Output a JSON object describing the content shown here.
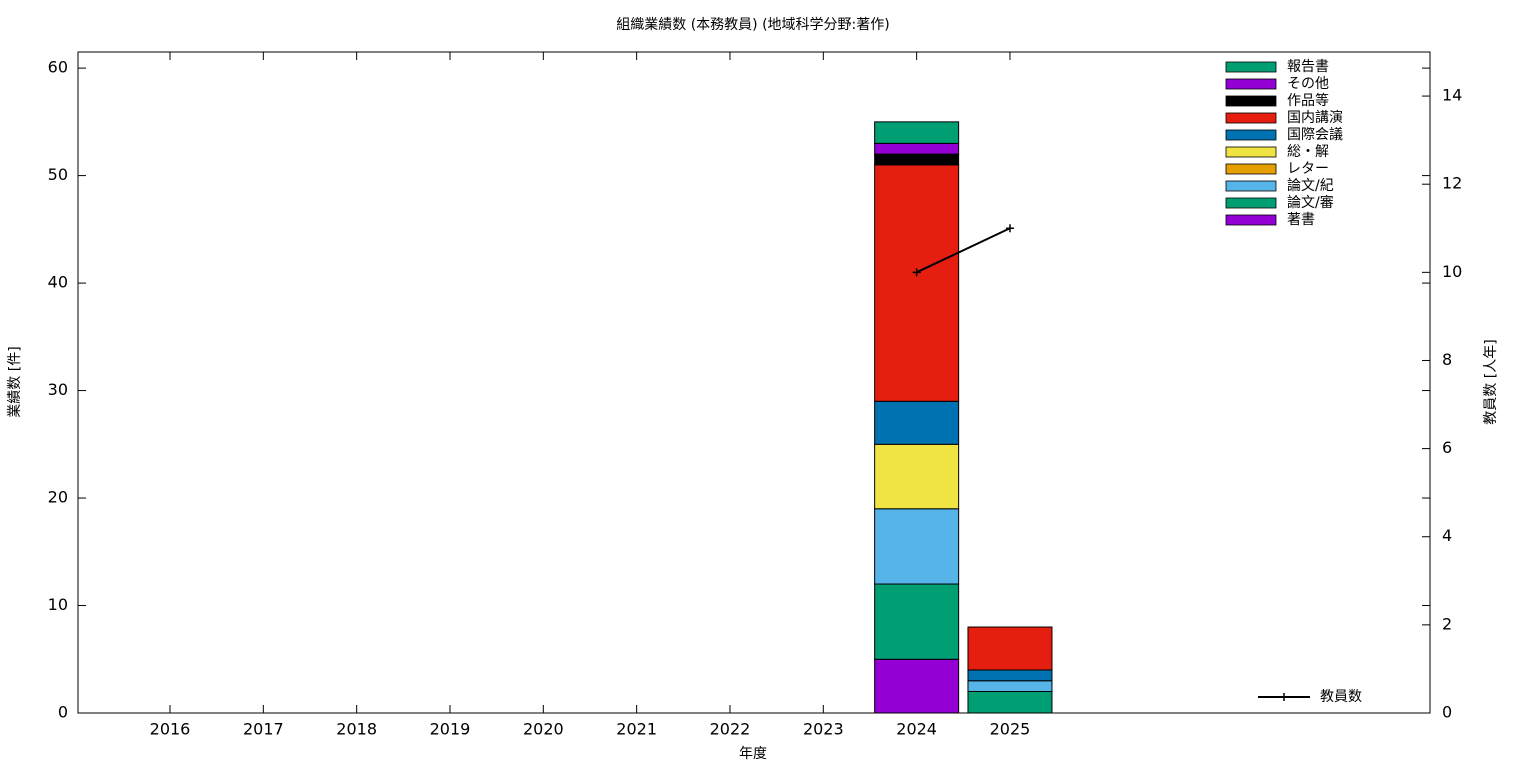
{
  "chart_data": {
    "type": "bar",
    "stacked": true,
    "title": "組織業績数 (本務教員) (地域科学分野:著作)",
    "x_label": "年度",
    "y_label": "業績数 [件]",
    "y2_label": "教員数 [人年]",
    "categories": [
      "2016",
      "2017",
      "2018",
      "2019",
      "2020",
      "2021",
      "2022",
      "2023",
      "2024",
      "2025"
    ],
    "series": [
      {
        "name": "著書",
        "color": "#9400d3",
        "values": [
          0,
          0,
          0,
          0,
          0,
          0,
          0,
          0,
          5,
          0
        ]
      },
      {
        "name": "論文/審",
        "color": "#009e73",
        "values": [
          0,
          0,
          0,
          0,
          0,
          0,
          0,
          0,
          7,
          2
        ]
      },
      {
        "name": "論文/紀",
        "color": "#56b4e9",
        "values": [
          0,
          0,
          0,
          0,
          0,
          0,
          0,
          0,
          7,
          1
        ]
      },
      {
        "name": "レター",
        "color": "#e69f00",
        "values": [
          0,
          0,
          0,
          0,
          0,
          0,
          0,
          0,
          0,
          0
        ]
      },
      {
        "name": "総・解",
        "color": "#f0e442",
        "values": [
          0,
          0,
          0,
          0,
          0,
          0,
          0,
          0,
          6,
          0
        ]
      },
      {
        "name": "国際会議",
        "color": "#0072b2",
        "values": [
          0,
          0,
          0,
          0,
          0,
          0,
          0,
          0,
          4,
          1
        ]
      },
      {
        "name": "国内講演",
        "color": "#e51e10",
        "values": [
          0,
          0,
          0,
          0,
          0,
          0,
          0,
          0,
          22,
          4
        ]
      },
      {
        "name": "作品等",
        "color": "#000000",
        "values": [
          0,
          0,
          0,
          0,
          0,
          0,
          0,
          0,
          1,
          0
        ]
      },
      {
        "name": "その他",
        "color": "#9400d3",
        "values": [
          0,
          0,
          0,
          0,
          0,
          0,
          0,
          0,
          1,
          0
        ]
      },
      {
        "name": "報告書",
        "color": "#009e73",
        "values": [
          0,
          0,
          0,
          0,
          0,
          0,
          0,
          0,
          2,
          0
        ]
      },
      {
        "name": "教員数",
        "color": "#000000",
        "type": "line",
        "axis": "y2",
        "values": [
          null,
          null,
          null,
          null,
          null,
          null,
          null,
          null,
          10,
          11
        ]
      }
    ],
    "ylim": [
      0,
      61.5
    ],
    "yticks": [
      0,
      10,
      20,
      30,
      40,
      50,
      60
    ],
    "y2lim": [
      0,
      15
    ],
    "y2ticks": [
      0,
      2,
      4,
      6,
      8,
      10,
      12,
      14
    ],
    "legend": "top-right"
  }
}
